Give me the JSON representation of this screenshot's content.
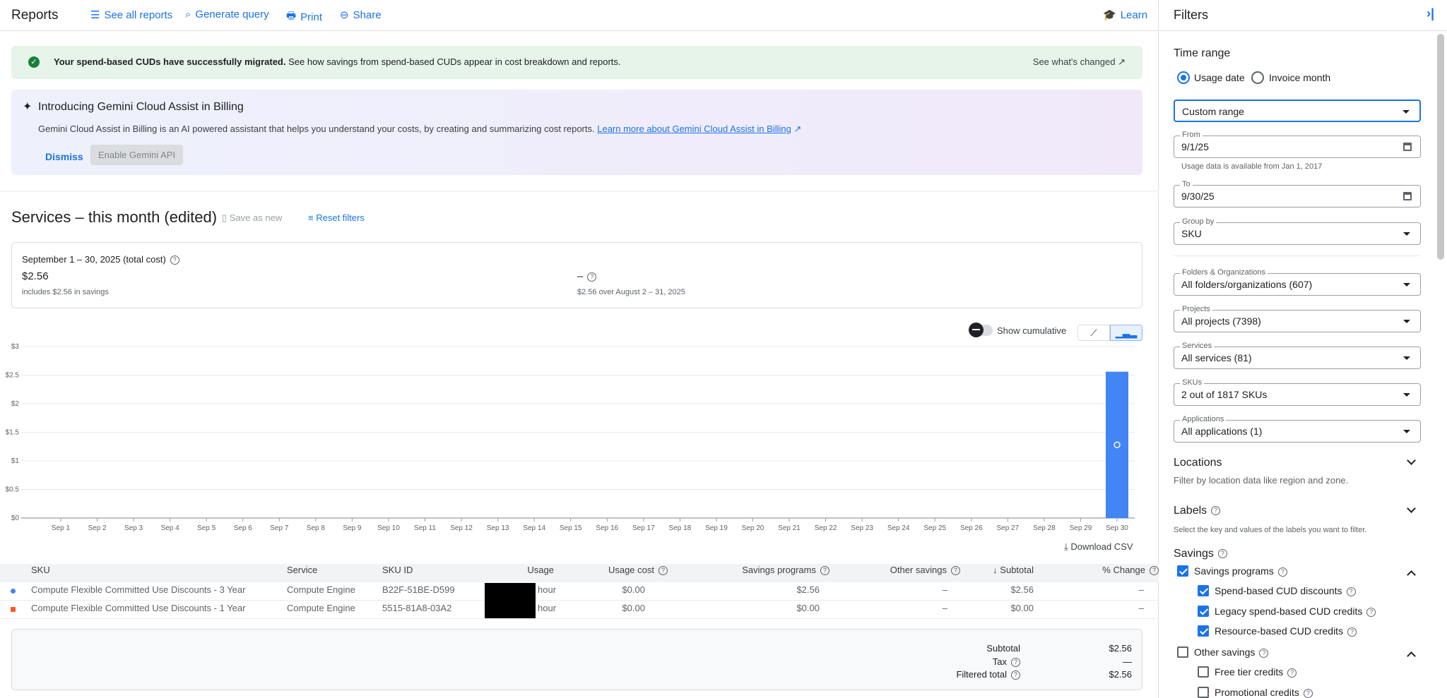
{
  "header": {
    "title": "Reports",
    "see_all": "See all reports",
    "generate": "Generate query",
    "print": "Print",
    "share": "Share",
    "learn": "Learn"
  },
  "migration_banner": {
    "bold": "Your spend-based CUDs have successfully migrated.",
    "text": " See how savings from spend-based CUDs appear in cost breakdown and reports.",
    "link": "See what's changed"
  },
  "gemini_banner": {
    "title": "Introducing Gemini Cloud Assist in Billing",
    "text": "Gemini Cloud Assist in Billing is an AI powered assistant that helps you understand your costs, by creating and summarizing cost reports. ",
    "link": "Learn more about Gemini Cloud Assist in Billing",
    "dismiss": "Dismiss",
    "enable": "Enable Gemini API"
  },
  "report": {
    "title": "Services – this month (edited)",
    "save_as_new": "Save as new",
    "reset_filters": "Reset filters"
  },
  "summary": {
    "period": "September 1 – 30, 2025 (total cost)",
    "total": "$2.56",
    "savings_note": "includes $2.56 in savings",
    "change": "–",
    "compare": "$2.56 over August 2 – 31, 2025"
  },
  "chart_controls": {
    "show_cumulative": "Show cumulative",
    "cumulative_on": false,
    "selected_view": "bar"
  },
  "chart_data": {
    "type": "bar",
    "stacked": true,
    "categories": [
      "Sep 1",
      "Sep 2",
      "Sep 3",
      "Sep 4",
      "Sep 5",
      "Sep 6",
      "Sep 7",
      "Sep 8",
      "Sep 9",
      "Sep 10",
      "Sep 11",
      "Sep 12",
      "Sep 13",
      "Sep 14",
      "Sep 15",
      "Sep 16",
      "Sep 17",
      "Sep 18",
      "Sep 19",
      "Sep 20",
      "Sep 21",
      "Sep 22",
      "Sep 23",
      "Sep 24",
      "Sep 25",
      "Sep 26",
      "Sep 27",
      "Sep 28",
      "Sep 29",
      "Sep 30"
    ],
    "yticks": [
      "$0",
      "$0.5",
      "$1",
      "$1.5",
      "$2",
      "$2.5",
      "$3"
    ],
    "ylim": [
      0,
      3
    ],
    "grid": true,
    "series": [
      {
        "color": "#4285f4",
        "values": [
          0,
          0,
          0,
          0,
          0,
          0,
          0,
          0,
          0,
          0,
          0,
          0,
          0,
          0,
          0,
          0,
          0,
          0,
          0,
          0,
          0,
          0,
          0,
          0,
          0,
          0,
          0,
          0,
          0,
          2.56
        ]
      },
      {
        "color": "#ff5722",
        "values": [
          0,
          0,
          0,
          0,
          0,
          0,
          0,
          0,
          0,
          0,
          0,
          0,
          0,
          0,
          0,
          0,
          0,
          0,
          0,
          0,
          0,
          0,
          0,
          0,
          0,
          0,
          0,
          0,
          0,
          0
        ]
      }
    ]
  },
  "download_csv": "Download CSV",
  "table": {
    "headers": [
      "SKU",
      "Service",
      "SKU ID",
      "Usage",
      "Usage cost",
      "Savings programs",
      "Other savings",
      "Subtotal",
      "% Change"
    ],
    "rows": [
      {
        "color": "#4285f4",
        "sku": "Compute Flexible Committed Use Discounts - 3 Year",
        "service": "Compute Engine",
        "sku_id": "B22F-51BE-D599",
        "usage": "hour",
        "usage_cost": "$0.00",
        "savings": "$2.56",
        "other": "–",
        "subtotal": "$2.56",
        "change": "–"
      },
      {
        "color": "#ff5722",
        "sku": "Compute Flexible Committed Use Discounts - 1 Year",
        "service": "Compute Engine",
        "sku_id": "5515-81A8-03A2",
        "usage": "hour",
        "usage_cost": "$0.00",
        "savings": "$0.00",
        "other": "–",
        "subtotal": "$0.00",
        "change": "–"
      }
    ]
  },
  "totals": {
    "subtotal_label": "Subtotal",
    "subtotal": "$2.56",
    "tax_label": "Tax",
    "tax": "—",
    "filtered_label": "Filtered total",
    "filtered": "$2.56"
  },
  "filters": {
    "title": "Filters",
    "time_range": "Time range",
    "usage_date": "Usage date",
    "invoice_month": "Invoice month",
    "range": "Custom range",
    "from_label": "From",
    "from": "9/1/25",
    "hint": "Usage data is available from Jan 1, 2017",
    "to_label": "To",
    "to": "9/30/25",
    "group_label": "Group by",
    "group": "SKU",
    "folders_label": "Folders & Organizations",
    "folders": "All folders/organizations (607)",
    "projects_label": "Projects",
    "projects": "All projects (7398)",
    "services_label": "Services",
    "services": "All services (81)",
    "skus_label": "SKUs",
    "skus": "2 out of 1817 SKUs",
    "apps_label": "Applications",
    "apps": "All applications (1)",
    "locations": "Locations",
    "locations_desc": "Filter by location data like region and zone.",
    "labels": "Labels",
    "labels_desc": "Select the key and values of the labels you want to filter.",
    "savings": "Savings",
    "savings_programs": "Savings programs",
    "spend_cud": "Spend-based CUD discounts",
    "legacy_cud": "Legacy spend-based CUD credits",
    "resource_cud": "Resource-based CUD credits",
    "other_savings": "Other savings",
    "free_tier": "Free tier credits",
    "promo": "Promotional credits"
  }
}
